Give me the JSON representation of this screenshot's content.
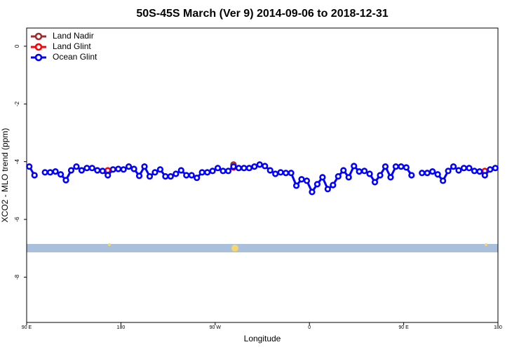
{
  "chart_data": {
    "type": "line",
    "title": "50S-45S March (Ver 9)   2014-09-06 to 2018-12-31",
    "x_label": "Longitude",
    "y_label": "XCO2 - MLO trend (ppm)",
    "xlim": [
      90,
      540
    ],
    "xticks": [
      {
        "value": 90,
        "label": "90 E"
      },
      180,
      {
        "value": 270,
        "label": "90 W"
      },
      {
        "value": 360,
        "label": "0"
      },
      {
        "value": 450,
        "label": "90 E"
      },
      {
        "value": 540,
        "label": "180"
      }
    ],
    "ylim": [
      -9.57,
      0.63
    ],
    "yticks": [
      0,
      -2,
      -4,
      -6,
      -8
    ],
    "legend": "top-left",
    "x": [
      92.5,
      97.5,
      102.5,
      107.5,
      112.5,
      117.5,
      122.5,
      127.5,
      132.5,
      137.5,
      142.5,
      147.5,
      152.5,
      157.5,
      162.5,
      167.5,
      172.5,
      177.5,
      182.5,
      187.5,
      192.5,
      197.5,
      202.5,
      207.5,
      212.5,
      217.5,
      222.5,
      227.5,
      232.5,
      237.5,
      242.5,
      247.5,
      252.5,
      257.5,
      262.5,
      267.5,
      272.5,
      277.5,
      282.5,
      287.5,
      292.5,
      297.5,
      302.5,
      307.5,
      312.5,
      317.5,
      322.5,
      327.5,
      332.5,
      337.5,
      342.5,
      347.5,
      352.5,
      357.5,
      362.5,
      367.5,
      372.5,
      377.5,
      382.5,
      387.5,
      392.5,
      397.5,
      402.5,
      407.5,
      412.5,
      417.5,
      422.5,
      427.5,
      432.5,
      437.5,
      442.5,
      447.5,
      452.5,
      457.5,
      462.5,
      467.5,
      472.5,
      477.5,
      482.5,
      487.5,
      492.5,
      497.5,
      502.5,
      507.5,
      512.5,
      517.5,
      522.5,
      527.5,
      532.5,
      537.5
    ],
    "series": [
      {
        "name": "Land Nadir",
        "color": "#a52a2a",
        "values": [
          null,
          null,
          null,
          null,
          null,
          null,
          null,
          null,
          null,
          null,
          null,
          null,
          null,
          null,
          null,
          null,
          null,
          null,
          null,
          null,
          null,
          null,
          null,
          null,
          null,
          null,
          null,
          null,
          null,
          null,
          null,
          null,
          null,
          null,
          null,
          null,
          null,
          null,
          null,
          -4.1,
          null,
          null,
          null,
          null,
          null,
          null,
          null,
          null,
          null,
          null,
          null,
          null,
          null,
          null,
          null,
          null,
          null,
          null,
          null,
          null,
          null,
          null,
          null,
          null,
          null,
          null,
          null,
          null,
          null,
          null,
          null,
          null,
          null,
          null,
          null,
          null,
          null,
          null,
          null,
          null,
          null,
          null,
          null,
          null,
          null,
          null,
          null,
          null,
          null,
          null
        ]
      },
      {
        "name": "Land Glint",
        "color": "#ff0000",
        "values": [
          null,
          null,
          null,
          null,
          null,
          null,
          null,
          null,
          null,
          null,
          null,
          null,
          null,
          null,
          null,
          -4.3,
          null,
          null,
          null,
          null,
          null,
          null,
          null,
          null,
          null,
          null,
          null,
          null,
          null,
          null,
          null,
          null,
          null,
          null,
          null,
          null,
          null,
          null,
          null,
          -4.2,
          null,
          null,
          null,
          null,
          null,
          null,
          null,
          null,
          null,
          null,
          null,
          null,
          null,
          null,
          null,
          null,
          null,
          null,
          null,
          null,
          null,
          null,
          null,
          null,
          null,
          null,
          null,
          null,
          null,
          null,
          null,
          null,
          null,
          null,
          null,
          null,
          null,
          null,
          null,
          null,
          null,
          null,
          null,
          null,
          null,
          null,
          null,
          -4.32,
          null,
          null
        ]
      },
      {
        "name": "Ocean Glint",
        "color": "#0000ff",
        "values": [
          -4.17,
          -4.47,
          null,
          -4.37,
          -4.37,
          -4.34,
          -4.44,
          -4.64,
          -4.3,
          -4.17,
          -4.3,
          -4.22,
          -4.22,
          -4.3,
          -4.32,
          -4.47,
          -4.27,
          -4.25,
          -4.27,
          -4.17,
          -4.25,
          -4.49,
          -4.17,
          -4.51,
          -4.37,
          -4.27,
          -4.51,
          -4.51,
          -4.42,
          -4.3,
          -4.47,
          -4.47,
          -4.56,
          -4.37,
          -4.37,
          -4.32,
          -4.22,
          -4.32,
          -4.32,
          -4.17,
          -4.22,
          -4.22,
          -4.22,
          -4.17,
          -4.1,
          -4.15,
          -4.3,
          -4.42,
          -4.37,
          -4.39,
          -4.39,
          -4.83,
          -4.61,
          -4.66,
          -5.05,
          -4.78,
          -4.54,
          -4.95,
          -4.81,
          -4.51,
          -4.3,
          -4.54,
          -4.15,
          -4.34,
          -4.32,
          -4.42,
          -4.71,
          -4.47,
          -4.17,
          -4.54,
          -4.17,
          -4.17,
          -4.2,
          -4.47,
          null,
          -4.39,
          -4.39,
          -4.34,
          -4.44,
          -4.66,
          -4.32,
          -4.17,
          -4.3,
          -4.22,
          -4.22,
          -4.32,
          -4.34,
          -4.47,
          -4.27,
          -4.22
        ]
      }
    ]
  }
}
